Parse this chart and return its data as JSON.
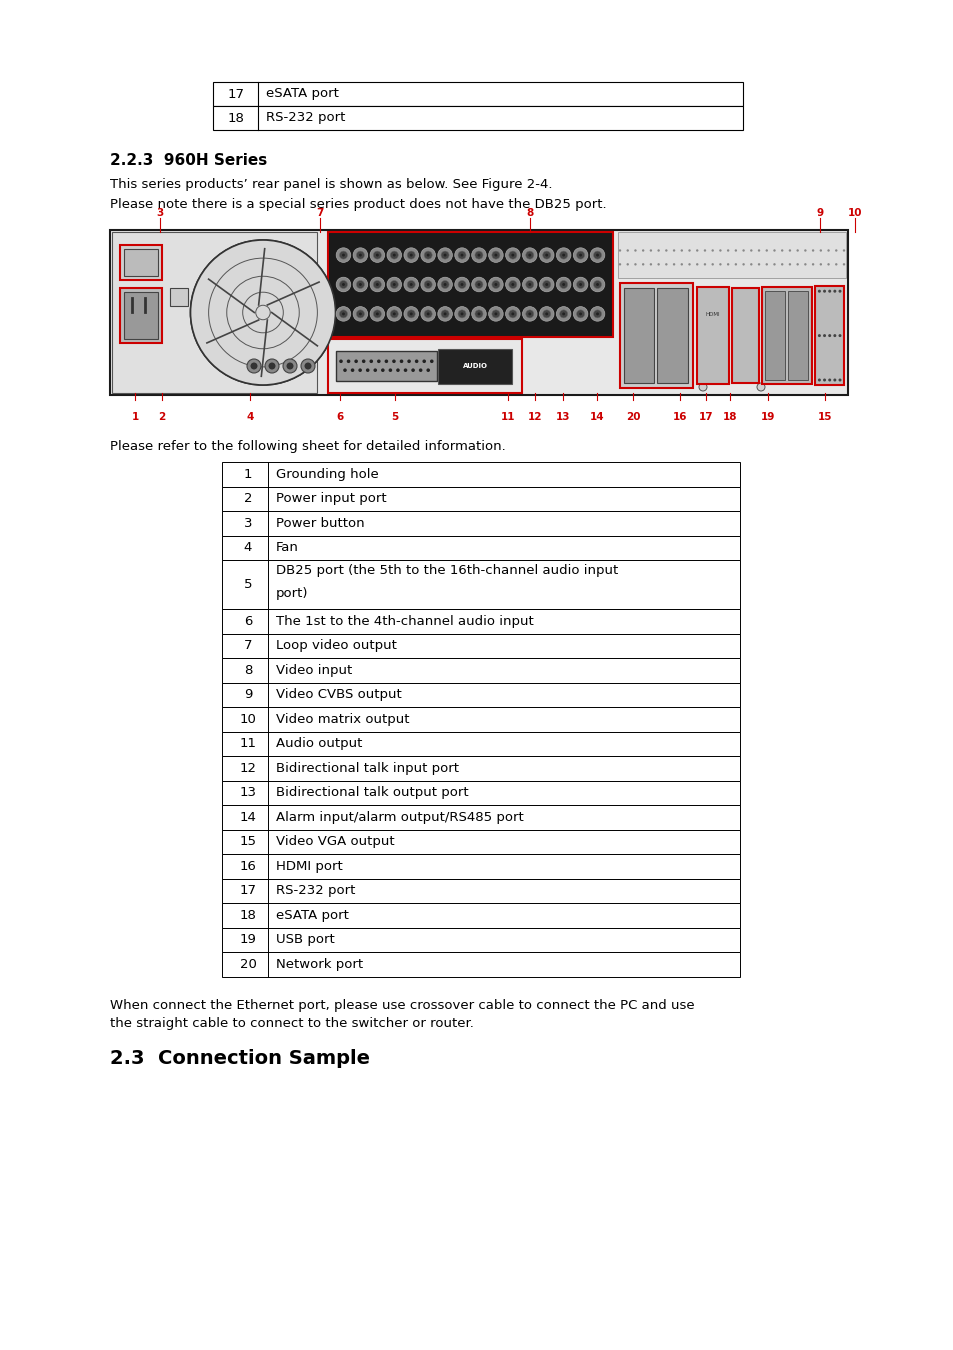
{
  "background_color": "#ffffff",
  "top_table": {
    "rows": [
      [
        "17",
        "eSATA port"
      ],
      [
        "18",
        "RS-232 port"
      ]
    ]
  },
  "section_title": "2.2.3  960H Series",
  "para1": "This series products’ rear panel is shown as below. See Figure 2-4.",
  "para2": "Please note there is a special series product does not have the DB25 port.",
  "refer_text": "Please refer to the following sheet for detailed information.",
  "main_table": {
    "rows": [
      [
        "1",
        "Grounding hole"
      ],
      [
        "2",
        "Power input port"
      ],
      [
        "3",
        "Power button"
      ],
      [
        "4",
        "Fan"
      ],
      [
        "5",
        "DB25 port (the 5th to the 16th-channel audio input\nport)"
      ],
      [
        "6",
        "The 1st to the 4th-channel audio input"
      ],
      [
        "7",
        "Loop video output"
      ],
      [
        "8",
        "Video input"
      ],
      [
        "9",
        "Video CVBS output"
      ],
      [
        "10",
        "Video matrix output"
      ],
      [
        "11",
        "Audio output"
      ],
      [
        "12",
        "Bidirectional talk input port"
      ],
      [
        "13",
        "Bidirectional talk output port"
      ],
      [
        "14",
        "Alarm input/alarm output/RS485 port"
      ],
      [
        "15",
        "Video VGA output"
      ],
      [
        "16",
        "HDMI port"
      ],
      [
        "17",
        "RS-232 port"
      ],
      [
        "18",
        "eSATA port"
      ],
      [
        "19",
        "USB port"
      ],
      [
        "20",
        "Network port"
      ]
    ]
  },
  "bottom_para1": "When connect the Ethernet port, please use crossover cable to connect the PC and use",
  "bottom_para2": "the straight cable to connect to the switcher or router.",
  "section2_title": "2.3  Connection Sample",
  "text_color": "#000000",
  "red_color": "#cc0000",
  "body_fontsize": 9.5,
  "section_fontsize": 11,
  "section2_fontsize": 14,
  "label_top": [
    [
      "3",
      160
    ],
    [
      "7",
      320
    ],
    [
      "8",
      530
    ],
    [
      "9",
      820
    ],
    [
      "10",
      855
    ]
  ],
  "label_bot": [
    [
      "1",
      135
    ],
    [
      "2",
      162
    ],
    [
      "4",
      250
    ],
    [
      "6",
      340
    ],
    [
      "5",
      395
    ],
    [
      "11",
      508
    ],
    [
      "12",
      535
    ],
    [
      "13",
      563
    ],
    [
      "14",
      597
    ],
    [
      "20",
      633
    ],
    [
      "16",
      680
    ],
    [
      "17",
      706
    ],
    [
      "18",
      730
    ],
    [
      "19",
      768
    ],
    [
      "15",
      825
    ]
  ]
}
